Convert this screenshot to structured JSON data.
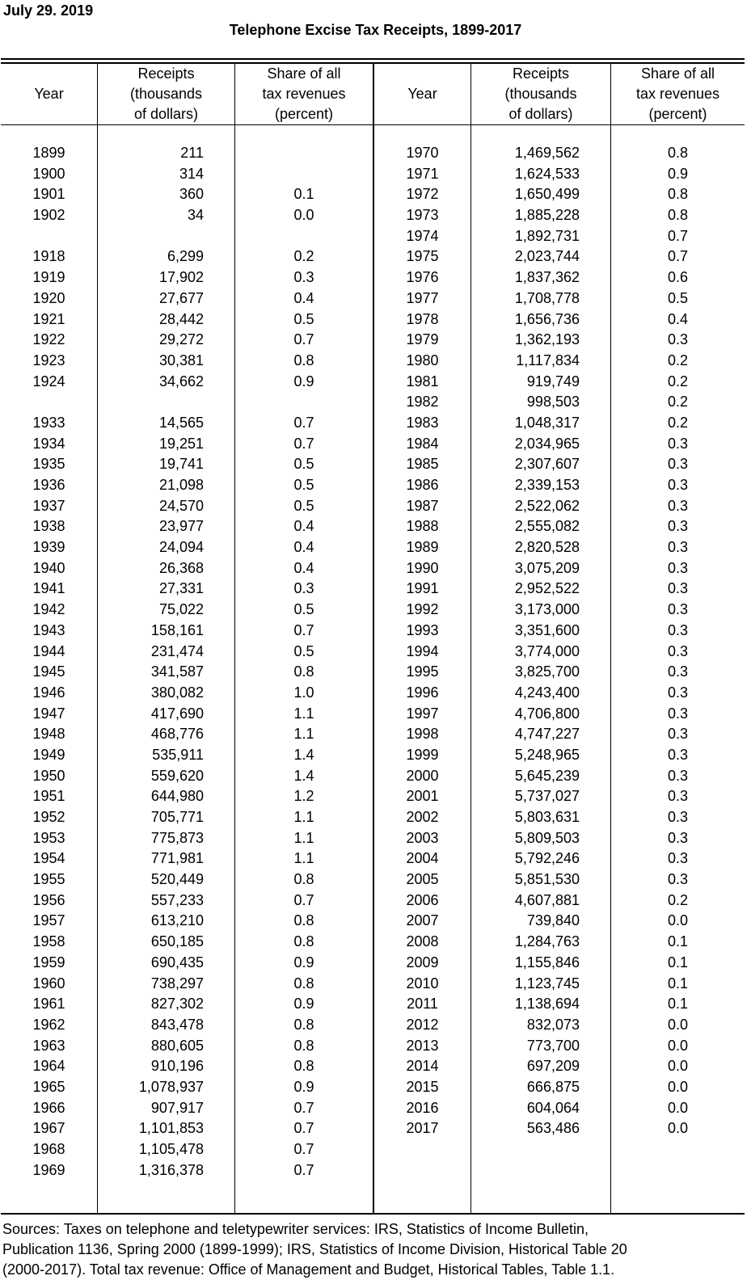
{
  "page": {
    "date": "July 29. 2019",
    "title": "Telephone Excise Tax Receipts, 1899-2017",
    "source_lines": [
      "Sources: Taxes on telephone and teletypewriter services: IRS, Statistics of Income Bulletin,",
      "Publication 1136, Spring 2000 (1899-1999); IRS, Statistics of Income Division, Historical Table 20",
      "(2000-2017). Total tax revenue: Office of Management and Budget, Historical Tables, Table 1.1."
    ]
  },
  "table": {
    "column_headers": {
      "year": "Year",
      "receipts_lines": [
        "Receipts",
        "(thousands",
        "of dollars)"
      ],
      "share_lines": [
        "Share of all",
        "tax revenues",
        "(percent)"
      ]
    },
    "rows": [
      [
        "1899",
        "211",
        "",
        "1970",
        "1,469,562",
        "0.8"
      ],
      [
        "1900",
        "314",
        "",
        "1971",
        "1,624,533",
        "0.9"
      ],
      [
        "1901",
        "360",
        "0.1",
        "1972",
        "1,650,499",
        "0.8"
      ],
      [
        "1902",
        "34",
        "0.0",
        "1973",
        "1,885,228",
        "0.8"
      ],
      [
        "",
        "",
        "",
        "1974",
        "1,892,731",
        "0.7"
      ],
      [
        "1918",
        "6,299",
        "0.2",
        "1975",
        "2,023,744",
        "0.7"
      ],
      [
        "1919",
        "17,902",
        "0.3",
        "1976",
        "1,837,362",
        "0.6"
      ],
      [
        "1920",
        "27,677",
        "0.4",
        "1977",
        "1,708,778",
        "0.5"
      ],
      [
        "1921",
        "28,442",
        "0.5",
        "1978",
        "1,656,736",
        "0.4"
      ],
      [
        "1922",
        "29,272",
        "0.7",
        "1979",
        "1,362,193",
        "0.3"
      ],
      [
        "1923",
        "30,381",
        "0.8",
        "1980",
        "1,117,834",
        "0.2"
      ],
      [
        "1924",
        "34,662",
        "0.9",
        "1981",
        "919,749",
        "0.2"
      ],
      [
        "",
        "",
        "",
        "1982",
        "998,503",
        "0.2"
      ],
      [
        "1933",
        "14,565",
        "0.7",
        "1983",
        "1,048,317",
        "0.2"
      ],
      [
        "1934",
        "19,251",
        "0.7",
        "1984",
        "2,034,965",
        "0.3"
      ],
      [
        "1935",
        "19,741",
        "0.5",
        "1985",
        "2,307,607",
        "0.3"
      ],
      [
        "1936",
        "21,098",
        "0.5",
        "1986",
        "2,339,153",
        "0.3"
      ],
      [
        "1937",
        "24,570",
        "0.5",
        "1987",
        "2,522,062",
        "0.3"
      ],
      [
        "1938",
        "23,977",
        "0.4",
        "1988",
        "2,555,082",
        "0.3"
      ],
      [
        "1939",
        "24,094",
        "0.4",
        "1989",
        "2,820,528",
        "0.3"
      ],
      [
        "1940",
        "26,368",
        "0.4",
        "1990",
        "3,075,209",
        "0.3"
      ],
      [
        "1941",
        "27,331",
        "0.3",
        "1991",
        "2,952,522",
        "0.3"
      ],
      [
        "1942",
        "75,022",
        "0.5",
        "1992",
        "3,173,000",
        "0.3"
      ],
      [
        "1943",
        "158,161",
        "0.7",
        "1993",
        "3,351,600",
        "0.3"
      ],
      [
        "1944",
        "231,474",
        "0.5",
        "1994",
        "3,774,000",
        "0.3"
      ],
      [
        "1945",
        "341,587",
        "0.8",
        "1995",
        "3,825,700",
        "0.3"
      ],
      [
        "1946",
        "380,082",
        "1.0",
        "1996",
        "4,243,400",
        "0.3"
      ],
      [
        "1947",
        "417,690",
        "1.1",
        "1997",
        "4,706,800",
        "0.3"
      ],
      [
        "1948",
        "468,776",
        "1.1",
        "1998",
        "4,747,227",
        "0.3"
      ],
      [
        "1949",
        "535,911",
        "1.4",
        "1999",
        "5,248,965",
        "0.3"
      ],
      [
        "1950",
        "559,620",
        "1.4",
        "2000",
        "5,645,239",
        "0.3"
      ],
      [
        "1951",
        "644,980",
        "1.2",
        "2001",
        "5,737,027",
        "0.3"
      ],
      [
        "1952",
        "705,771",
        "1.1",
        "2002",
        "5,803,631",
        "0.3"
      ],
      [
        "1953",
        "775,873",
        "1.1",
        "2003",
        "5,809,503",
        "0.3"
      ],
      [
        "1954",
        "771,981",
        "1.1",
        "2004",
        "5,792,246",
        "0.3"
      ],
      [
        "1955",
        "520,449",
        "0.8",
        "2005",
        "5,851,530",
        "0.3"
      ],
      [
        "1956",
        "557,233",
        "0.7",
        "2006",
        "4,607,881",
        "0.2"
      ],
      [
        "1957",
        "613,210",
        "0.8",
        "2007",
        "739,840",
        "0.0"
      ],
      [
        "1958",
        "650,185",
        "0.8",
        "2008",
        "1,284,763",
        "0.1"
      ],
      [
        "1959",
        "690,435",
        "0.9",
        "2009",
        "1,155,846",
        "0.1"
      ],
      [
        "1960",
        "738,297",
        "0.8",
        "2010",
        "1,123,745",
        "0.1"
      ],
      [
        "1961",
        "827,302",
        "0.9",
        "2011",
        "1,138,694",
        "0.1"
      ],
      [
        "1962",
        "843,478",
        "0.8",
        "2012",
        "832,073",
        "0.0"
      ],
      [
        "1963",
        "880,605",
        "0.8",
        "2013",
        "773,700",
        "0.0"
      ],
      [
        "1964",
        "910,196",
        "0.8",
        "2014",
        "697,209",
        "0.0"
      ],
      [
        "1965",
        "1,078,937",
        "0.9",
        "2015",
        "666,875",
        "0.0"
      ],
      [
        "1966",
        "907,917",
        "0.7",
        "2016",
        "604,064",
        "0.0"
      ],
      [
        "1967",
        "1,101,853",
        "0.7",
        "2017",
        "563,486",
        "0.0"
      ],
      [
        "1968",
        "1,105,478",
        "0.7",
        "",
        "",
        ""
      ],
      [
        "1969",
        "1,316,378",
        "0.7",
        "",
        "",
        ""
      ]
    ]
  }
}
